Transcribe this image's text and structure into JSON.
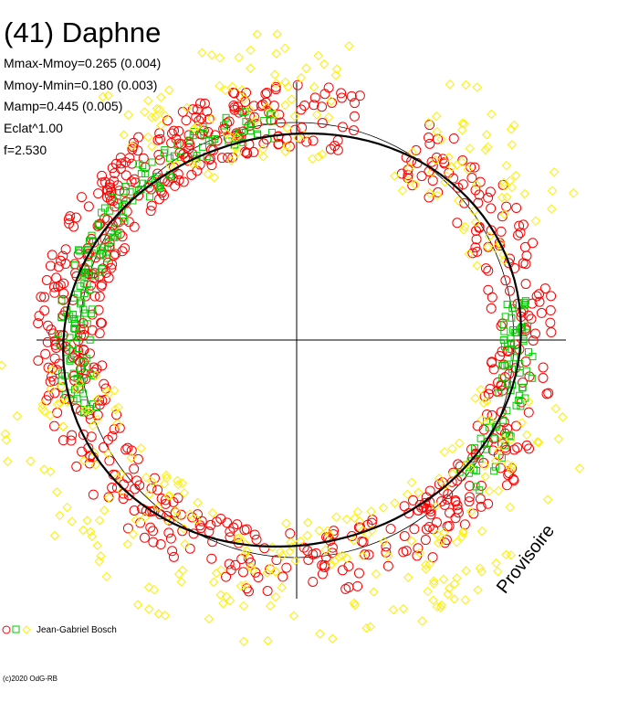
{
  "header": {
    "title": "(41) Daphne",
    "stats": [
      "Mmax-Mmoy=0.265 (0.004)",
      "Mmoy-Mmin=0.180 (0.003)",
      "Mamp=0.445 (0.005)",
      "Eclat^1.00",
      "f=2.530"
    ]
  },
  "legend": {
    "credit": "Jean-Gabriel Bosch"
  },
  "footer": {
    "copyright": "(c)2020 OdG-RB",
    "watermark": "Provisoire"
  },
  "colors": {
    "red": "#ff0000",
    "green": "#00cc00",
    "yellow": "#ffee00",
    "axes": "#000000"
  },
  "chart_data": {
    "type": "scatter",
    "title": "(41) Daphne",
    "polar": true,
    "reference_circle": true,
    "fit_curve": true,
    "grid": false,
    "legend_position": "bottom-left",
    "series": [
      {
        "color": "red",
        "marker": "circle",
        "arcs": [
          [
            75,
            195
          ],
          [
            195,
            320
          ],
          [
            100,
            190
          ],
          [
            10,
            60
          ],
          [
            -55,
            10
          ]
        ],
        "radius_range": [
          0.9,
          1.2
        ]
      },
      {
        "color": "green",
        "marker": "square",
        "arcs": [
          [
            95,
            200
          ],
          [
            -40,
            10
          ]
        ],
        "radius_range": [
          0.95,
          1.1
        ]
      },
      {
        "color": "yellow",
        "marker": "diamond",
        "arcs": [
          [
            80,
            130
          ],
          [
            20,
            60
          ],
          [
            185,
            245
          ],
          [
            250,
            275
          ],
          [
            275,
            345
          ]
        ],
        "radius_range": [
          0.85,
          1.45
        ]
      }
    ]
  }
}
